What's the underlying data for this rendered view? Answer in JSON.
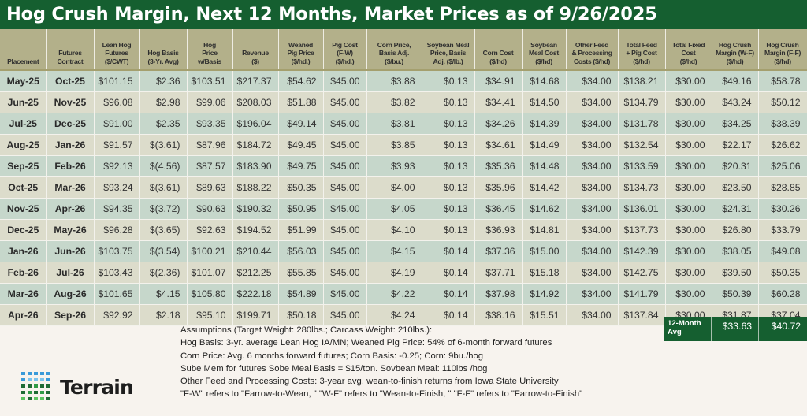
{
  "title": "Hog Crush Margin, Next 12 Months, Market Prices as of 9/26/2025",
  "table": {
    "headers": [
      "Placement",
      "Futures\nContract",
      "Lean Hog\nFutures\n($/CWT)",
      "Hog Basis\n(3-Yr. Avg)",
      "Hog\nPrice\nw/Basis",
      "Revenue\n($)",
      "Weaned\nPig Price\n($/hd.)",
      "Pig Cost\n(F-W)\n($/hd.)",
      "Corn Price,\nBasis Adj.\n($/bu.)",
      "Soybean Meal\nPrice, Basis\nAdj. ($/lb.)",
      "Corn Cost\n($/hd)",
      "Soybean\nMeal Cost\n($/hd)",
      "Other Feed\n& Processing\nCosts ($/hd)",
      "Total Feed\n+ Pig Cost\n($/hd)",
      "Total Fixed\nCost\n($/hd)",
      "Hog Crush\nMargin (W-F)\n($/hd)",
      "Hog Crush\nMargin (F-F)\n($/hd)"
    ],
    "rows": [
      [
        "May-25",
        "Oct-25",
        "$101.15",
        "$2.36",
        "$103.51",
        "$217.37",
        "$54.62",
        "$45.00",
        "$3.88",
        "$0.13",
        "$34.91",
        "$14.68",
        "$34.00",
        "$138.21",
        "$30.00",
        "$49.16",
        "$58.78"
      ],
      [
        "Jun-25",
        "Nov-25",
        "$96.08",
        "$2.98",
        "$99.06",
        "$208.03",
        "$51.88",
        "$45.00",
        "$3.82",
        "$0.13",
        "$34.41",
        "$14.50",
        "$34.00",
        "$134.79",
        "$30.00",
        "$43.24",
        "$50.12"
      ],
      [
        "Jul-25",
        "Dec-25",
        "$91.00",
        "$2.35",
        "$93.35",
        "$196.04",
        "$49.14",
        "$45.00",
        "$3.81",
        "$0.13",
        "$34.26",
        "$14.39",
        "$34.00",
        "$131.78",
        "$30.00",
        "$34.25",
        "$38.39"
      ],
      [
        "Aug-25",
        "Jan-26",
        "$91.57",
        "$(3.61)",
        "$87.96",
        "$184.72",
        "$49.45",
        "$45.00",
        "$3.85",
        "$0.13",
        "$34.61",
        "$14.49",
        "$34.00",
        "$132.54",
        "$30.00",
        "$22.17",
        "$26.62"
      ],
      [
        "Sep-25",
        "Feb-26",
        "$92.13",
        "$(4.56)",
        "$87.57",
        "$183.90",
        "$49.75",
        "$45.00",
        "$3.93",
        "$0.13",
        "$35.36",
        "$14.48",
        "$34.00",
        "$133.59",
        "$30.00",
        "$20.31",
        "$25.06"
      ],
      [
        "Oct-25",
        "Mar-26",
        "$93.24",
        "$(3.61)",
        "$89.63",
        "$188.22",
        "$50.35",
        "$45.00",
        "$4.00",
        "$0.13",
        "$35.96",
        "$14.42",
        "$34.00",
        "$134.73",
        "$30.00",
        "$23.50",
        "$28.85"
      ],
      [
        "Nov-25",
        "Apr-26",
        "$94.35",
        "$(3.72)",
        "$90.63",
        "$190.32",
        "$50.95",
        "$45.00",
        "$4.05",
        "$0.13",
        "$36.45",
        "$14.62",
        "$34.00",
        "$136.01",
        "$30.00",
        "$24.31",
        "$30.26"
      ],
      [
        "Dec-25",
        "May-26",
        "$96.28",
        "$(3.65)",
        "$92.63",
        "$194.52",
        "$51.99",
        "$45.00",
        "$4.10",
        "$0.13",
        "$36.93",
        "$14.81",
        "$34.00",
        "$137.73",
        "$30.00",
        "$26.80",
        "$33.79"
      ],
      [
        "Jan-26",
        "Jun-26",
        "$103.75",
        "$(3.54)",
        "$100.21",
        "$210.44",
        "$56.03",
        "$45.00",
        "$4.15",
        "$0.14",
        "$37.36",
        "$15.00",
        "$34.00",
        "$142.39",
        "$30.00",
        "$38.05",
        "$49.08"
      ],
      [
        "Feb-26",
        "Jul-26",
        "$103.43",
        "$(2.36)",
        "$101.07",
        "$212.25",
        "$55.85",
        "$45.00",
        "$4.19",
        "$0.14",
        "$37.71",
        "$15.18",
        "$34.00",
        "$142.75",
        "$30.00",
        "$39.50",
        "$50.35"
      ],
      [
        "Mar-26",
        "Aug-26",
        "$101.65",
        "$4.15",
        "$105.80",
        "$222.18",
        "$54.89",
        "$45.00",
        "$4.22",
        "$0.14",
        "$37.98",
        "$14.92",
        "$34.00",
        "$141.79",
        "$30.00",
        "$50.39",
        "$60.28"
      ],
      [
        "Apr-26",
        "Sep-26",
        "$92.92",
        "$2.18",
        "$95.10",
        "$199.71",
        "$50.18",
        "$45.00",
        "$4.24",
        "$0.14",
        "$38.16",
        "$15.51",
        "$34.00",
        "$137.84",
        "$30.00",
        "$31.87",
        "$37.04"
      ]
    ]
  },
  "average": {
    "label": "12-Month\nAvg",
    "margin_wf": "$33.63",
    "margin_ff": "$40.72"
  },
  "notes": [
    "Assumptions (Target Weight: 280lbs.; Carcass Weight: 210lbs.):",
    "Hog Basis: 3-yr. average Lean Hog IA/MN; Weaned Pig Price: 54% of 6-month forward futures",
    "Corn Price: Avg. 6 months forward futures; Corn Basis: -0.25; Corn: 9bu./hog",
    "Sube Mem for futures Sobe Meal Basis = $15/ton. Sovbean Meal: 110lbs /hog",
    "Other Feed and Processing Costs: 3-year avg. wean-to-finish returns from Iowa State University",
    "\"F-W\" refers to \"Farrow-to-Wean, \" \"W-F\" refers to \"Wean-to-Finish, \" \"F-F\" refers to \"Farrow-to-Finish\""
  ],
  "logo": {
    "text": "Terrain",
    "colors": [
      "#3a9ad9",
      "#7cc3ec",
      "#1f6b35",
      "#2f9a45",
      "#5cc461"
    ]
  }
}
